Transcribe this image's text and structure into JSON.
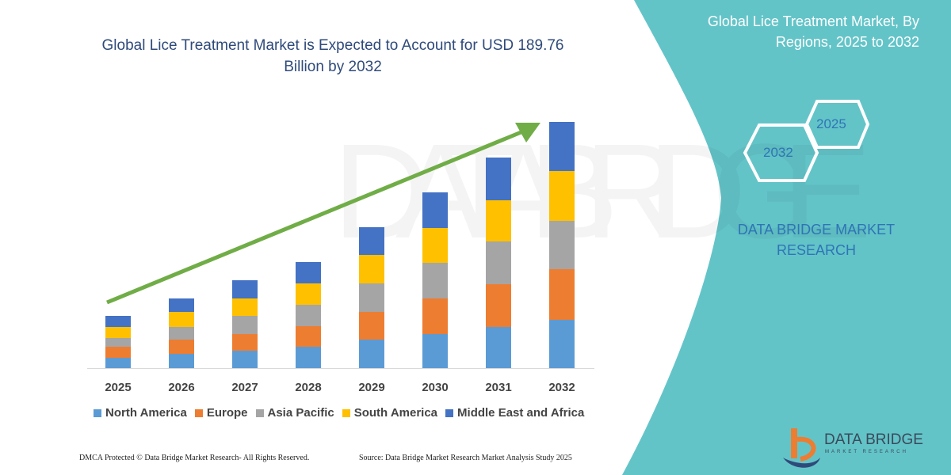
{
  "header": {
    "title": "Global Lice Treatment Market is Expected to Account for USD 189.76 Billion by 2032"
  },
  "side_panel": {
    "title": "Global Lice Treatment Market, By Regions, 2025 to 2032",
    "hex_start": "2025",
    "hex_end": "2032",
    "brand": "DATA BRIDGE MARKET RESEARCH",
    "logo_text": "DATA BRIDGE",
    "logo_sub": "MARKET RESEARCH",
    "color": "#63c4c8"
  },
  "footer": {
    "copyright": "DMCA Protected © Data Bridge Market Research-  All Rights Reserved.",
    "source": "Source: Data Bridge Market Research  Market Analysis Study 2025"
  },
  "chart_data": {
    "type": "bar",
    "stacked": true,
    "title": "Global Lice Treatment Market is Expected to Account for USD 189.76 Billion by 2032",
    "xlabel": "",
    "ylabel": "",
    "y_axis_shown": false,
    "grid": false,
    "legend_placement": "bottom",
    "trend_arrow": true,
    "trend_arrow_color": "#70ad47",
    "categories": [
      "2025",
      "2026",
      "2027",
      "2028",
      "2029",
      "2030",
      "2031",
      "2032"
    ],
    "series": [
      {
        "name": "North America",
        "color": "#5b9bd5",
        "values": [
          13,
          18,
          22,
          27,
          36,
          43,
          52,
          61
        ]
      },
      {
        "name": "Europe",
        "color": "#ed7d31",
        "values": [
          14,
          18,
          21,
          26,
          35,
          45,
          54,
          64
        ]
      },
      {
        "name": "Asia Pacific",
        "color": "#a5a5a5",
        "values": [
          11,
          16,
          23,
          27,
          36,
          45,
          54,
          61
        ]
      },
      {
        "name": "South America",
        "color": "#ffc000",
        "values": [
          14,
          19,
          22,
          27,
          36,
          44,
          52,
          63
        ]
      },
      {
        "name": "Middle East and Africa",
        "color": "#4472c4",
        "values": [
          14,
          17,
          23,
          27,
          35,
          45,
          54,
          62
        ]
      }
    ]
  }
}
